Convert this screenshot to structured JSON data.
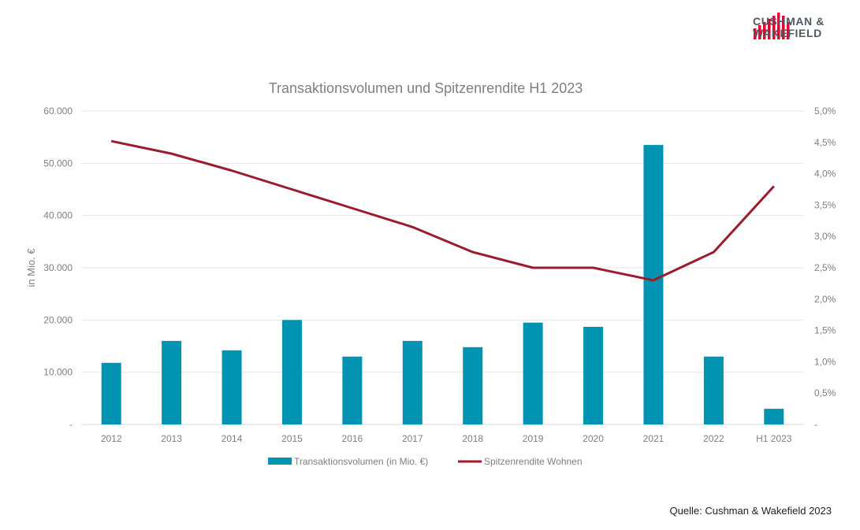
{
  "brand": {
    "line1": "CUSHMAN &",
    "line2": "WAKEFIELD",
    "color": "#e4002b",
    "logo": "bars-logo-icon"
  },
  "source": "Quelle: Cushman & Wakefield 2023",
  "chart_data": {
    "type": "bar+line",
    "title": "Transaktionsvolumen und Spitzenrendite H1 2023",
    "ylabel": "in Mio. €",
    "categories": [
      "2012",
      "2013",
      "2014",
      "2015",
      "2016",
      "2017",
      "2018",
      "2019",
      "2020",
      "2021",
      "2022",
      "H1 2023"
    ],
    "y_left": {
      "ylim": [
        0,
        60000
      ],
      "ticks": [
        "-",
        "10.000",
        "20.000",
        "30.000",
        "40.000",
        "50.000",
        "60.000"
      ]
    },
    "y_right": {
      "ylim": [
        0,
        5.0
      ],
      "ticks": [
        "-",
        "0,5%",
        "1,0%",
        "1,5%",
        "2,0%",
        "2,5%",
        "3,0%",
        "3,5%",
        "4,0%",
        "4,5%",
        "5,0%"
      ]
    },
    "series": [
      {
        "name": "Transaktionsvolumen (in Mio. €)",
        "type": "bar",
        "axis": "left",
        "color": "#0093b2",
        "values": [
          11800,
          16000,
          14200,
          20000,
          13000,
          16000,
          14800,
          19500,
          18700,
          53500,
          13000,
          3000
        ]
      },
      {
        "name": "Spitzenrendite Wohnen",
        "type": "line",
        "axis": "right",
        "color": "#9b1b2f",
        "values": [
          4.52,
          4.32,
          4.05,
          3.75,
          3.45,
          3.15,
          2.75,
          2.5,
          2.5,
          2.3,
          2.75,
          3.8
        ]
      }
    ],
    "grid": true,
    "legend": "bottom"
  }
}
